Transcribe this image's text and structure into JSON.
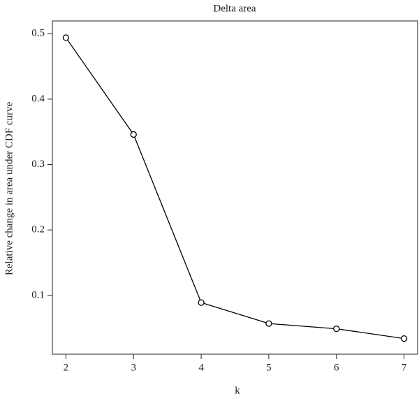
{
  "chart_data": {
    "type": "line",
    "title": "Delta area",
    "x_label": "k",
    "y_label": "Relative change in area under CDF curve",
    "x": [
      2,
      3,
      4,
      5,
      6,
      7
    ],
    "values": [
      0.494,
      0.346,
      0.089,
      0.057,
      0.049,
      0.034
    ],
    "color": "#000000",
    "xlim": [
      1.8,
      7.2
    ],
    "xticks": [
      2,
      3,
      4,
      5,
      6,
      7
    ],
    "ylim": [
      0.0144,
      0.512
    ],
    "yticks": [
      0.1,
      0.2,
      0.3,
      0.4,
      0.5
    ],
    "grid": false
  }
}
